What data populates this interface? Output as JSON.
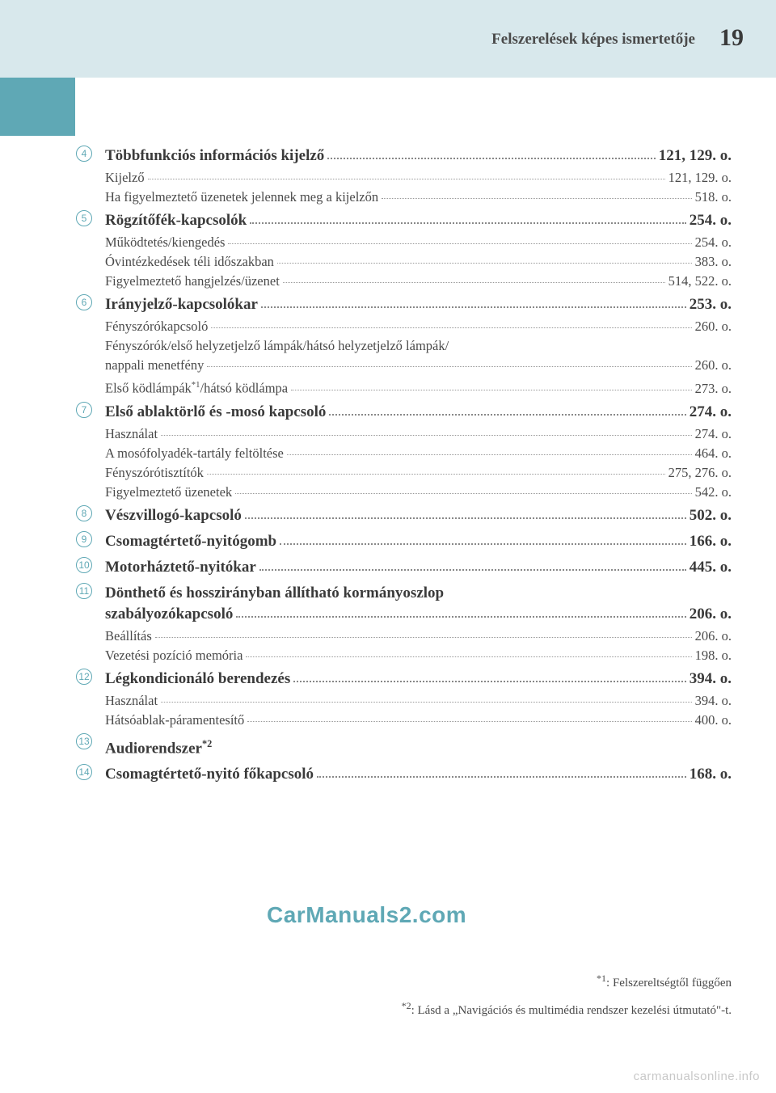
{
  "header": {
    "title": "Felszerelések képes ismertetője",
    "page_number": "19"
  },
  "entries": [
    {
      "marker": "4",
      "main": {
        "label": "Többfunkciós információs kijelző",
        "page": "121, 129. o."
      },
      "subs": [
        {
          "label": "Kijelző",
          "page": "121, 129. o."
        },
        {
          "label": "Ha figyelmeztető üzenetek jelennek meg a kijelzőn",
          "page": "518. o."
        }
      ]
    },
    {
      "marker": "5",
      "main": {
        "label": "Rögzítőfék-kapcsolók",
        "page": "254. o."
      },
      "subs": [
        {
          "label": "Működtetés/kiengedés",
          "page": "254. o."
        },
        {
          "label": "Óvintézkedések téli időszakban",
          "page": "383. o."
        },
        {
          "label": "Figyelmeztető hangjelzés/üzenet",
          "page": "514, 522. o."
        }
      ]
    },
    {
      "marker": "6",
      "main": {
        "label": "Irányjelző-kapcsolókar",
        "page": "253. o."
      },
      "subs": [
        {
          "label": "Fényszórókapcsoló",
          "page": "260. o."
        },
        {
          "label_html": "Fényszórók/első helyzetjelző lámpák/hátsó helyzetjelző lámpák/",
          "nodots": true
        },
        {
          "label": "nappali menetfény",
          "page": "260. o."
        },
        {
          "label_html": "Első ködlámpák<span class='sup'>*1</span>/hátsó ködlámpa",
          "page": "273. o."
        }
      ]
    },
    {
      "marker": "7",
      "main": {
        "label": "Első ablaktörlő és -mosó kapcsoló",
        "page": "274. o."
      },
      "subs": [
        {
          "label": "Használat",
          "page": "274. o."
        },
        {
          "label": "A mosófolyadék-tartály feltöltése",
          "page": "464. o."
        },
        {
          "label": "Fényszórótisztítók",
          "page": "275, 276. o."
        },
        {
          "label": "Figyelmeztető üzenetek",
          "page": "542. o."
        }
      ]
    },
    {
      "marker": "8",
      "main": {
        "label": "Vészvillogó-kapcsoló",
        "page": "502. o."
      },
      "subs": []
    },
    {
      "marker": "9",
      "main": {
        "label": "Csomagtértető-nyitógomb",
        "page": "166. o."
      },
      "subs": []
    },
    {
      "marker": "10",
      "main": {
        "label": "Motorháztető-nyitókar",
        "page": "445. o."
      },
      "subs": []
    },
    {
      "marker": "11",
      "main": {
        "label_html": "Dönthető és hosszirányban állítható kormányoszlop",
        "nodots": true
      },
      "main2": {
        "label": "szabályozókapcsoló",
        "page": "206. o."
      },
      "subs": [
        {
          "label": "Beállítás",
          "page": "206. o."
        },
        {
          "label": "Vezetési pozíció memória",
          "page": "198. o."
        }
      ]
    },
    {
      "marker": "12",
      "main": {
        "label": "Légkondicionáló berendezés",
        "page": "394. o."
      },
      "subs": [
        {
          "label": "Használat",
          "page": "394. o."
        },
        {
          "label": "Hátsóablak-páramentesítő",
          "page": "400. o."
        }
      ]
    },
    {
      "marker": "13",
      "main": {
        "label_html": "Audiorendszer<span class='sup'>*2</span>",
        "nodots": true
      },
      "subs": []
    },
    {
      "marker": "14",
      "main": {
        "label": "Csomagtértető-nyitó főkapcsoló",
        "page": "168. o."
      },
      "subs": []
    }
  ],
  "watermark": "CarManuals2.com",
  "footnotes": [
    {
      "mark": "*1",
      "text": ": Felszereltségtől függően"
    },
    {
      "mark": "*2",
      "text": ": Lásd a „Navigációs és multimédia rendszer kezelési útmutató\"-t."
    }
  ],
  "bottom_watermark": "carmanualsonline.info"
}
